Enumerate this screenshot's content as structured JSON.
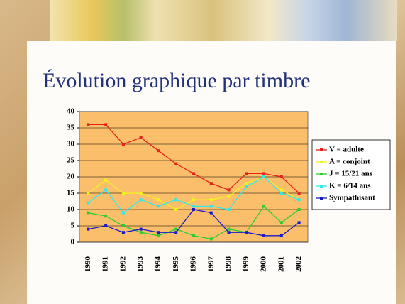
{
  "chart_data": {
    "type": "line",
    "title": "Évolution graphique par timbre",
    "categories": [
      "1990",
      "1991",
      "1992",
      "1993",
      "1994",
      "1995",
      "1996",
      "1997",
      "1998",
      "1999",
      "2000",
      "2001",
      "2002"
    ],
    "series": [
      {
        "name": "V = adulte",
        "color": "#e8201a",
        "values": [
          36,
          36,
          30,
          32,
          28,
          24,
          21,
          18,
          16,
          21,
          21,
          20,
          15
        ]
      },
      {
        "name": "A = conjoint",
        "color": "#f2f21e",
        "values": [
          15,
          19,
          15,
          15,
          13,
          10,
          13,
          13,
          14,
          18,
          20,
          16,
          13
        ]
      },
      {
        "name": "J = 15/21 ans",
        "color": "#2ecc2e",
        "values": [
          9,
          8,
          5,
          3,
          2,
          4,
          2,
          1,
          4,
          3,
          11,
          6,
          10
        ]
      },
      {
        "name": "K = 6/14 ans",
        "color": "#30e8e8",
        "values": [
          12,
          16,
          9,
          13,
          11,
          13,
          11,
          11,
          10,
          17,
          20,
          15,
          13
        ]
      },
      {
        "name": "Sympathisant",
        "color": "#1a1ac8",
        "values": [
          4,
          5,
          3,
          4,
          3,
          3,
          10,
          9,
          3,
          3,
          2,
          2,
          6
        ]
      }
    ],
    "ylim": [
      0,
      40
    ],
    "yticks": [
      0,
      5,
      10,
      15,
      20,
      25,
      30,
      35,
      40
    ],
    "grid": true
  }
}
